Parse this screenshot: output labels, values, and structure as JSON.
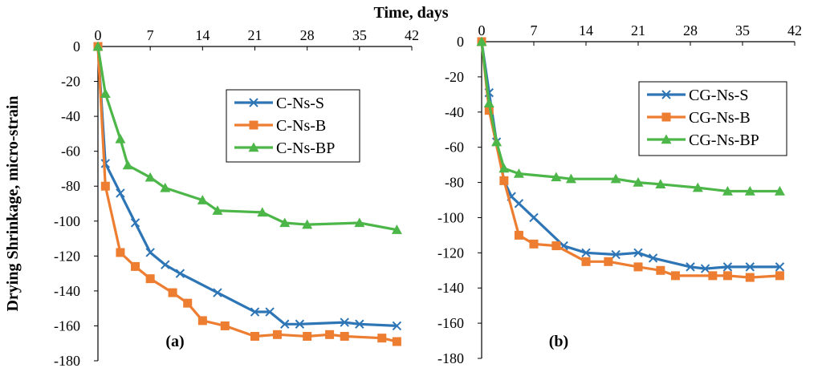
{
  "figure": {
    "xlabel": "Time, days",
    "ylabel": "Drying Shrinkage, micro-strain"
  },
  "chart_data": [
    {
      "type": "line",
      "panel_label": "(a)",
      "xlim": [
        0,
        42
      ],
      "ylim": [
        -180,
        0
      ],
      "x_ticks": [
        "0",
        "7",
        "14",
        "21",
        "28",
        "35",
        "42"
      ],
      "y_ticks": [
        "0",
        "-20",
        "-40",
        "-60",
        "-80",
        "-100",
        "-120",
        "-140",
        "-160",
        "-180"
      ],
      "grid": false,
      "legend_position": "top-right",
      "series": [
        {
          "name": "C-Ns-S",
          "color": "#2E75B6",
          "marker": "x",
          "x": [
            0,
            1,
            3,
            5,
            7,
            9,
            11,
            16,
            21,
            23,
            25,
            27,
            33,
            35,
            40
          ],
          "y": [
            0,
            -67,
            -84,
            -101,
            -118,
            -125,
            -130,
            -141,
            -152,
            -152,
            -159,
            -159,
            -158,
            -159,
            -160
          ]
        },
        {
          "name": "C-Ns-B",
          "color": "#ED7D31",
          "marker": "square",
          "x": [
            0,
            1,
            3,
            5,
            7,
            10,
            12,
            14,
            17,
            21,
            24,
            28,
            31,
            33,
            38,
            40
          ],
          "y": [
            0,
            -80,
            -118,
            -126,
            -133,
            -141,
            -147,
            -157,
            -160,
            -166,
            -165,
            -166,
            -165,
            -166,
            -167,
            -169
          ]
        },
        {
          "name": "C-Ns-BP",
          "color": "#4CB648",
          "marker": "triangle",
          "x": [
            0,
            1,
            3,
            4,
            7,
            9,
            14,
            16,
            22,
            25,
            28,
            35,
            40
          ],
          "y": [
            0,
            -27,
            -53,
            -68,
            -75,
            -81,
            -88,
            -94,
            -95,
            -101,
            -102,
            -101,
            -105
          ]
        }
      ]
    },
    {
      "type": "line",
      "panel_label": "(b)",
      "xlim": [
        0,
        42
      ],
      "ylim": [
        -180,
        0
      ],
      "x_ticks": [
        "0",
        "7",
        "14",
        "21",
        "28",
        "35",
        "42"
      ],
      "y_ticks": [
        "0",
        "-20",
        "-40",
        "-60",
        "-80",
        "-100",
        "-120",
        "-140",
        "-160",
        "-180"
      ],
      "grid": false,
      "legend_position": "top-right",
      "series": [
        {
          "name": "CG-Ns-S",
          "color": "#2E75B6",
          "marker": "x",
          "x": [
            0,
            1,
            2,
            3,
            4,
            5,
            7,
            11,
            14,
            18,
            21,
            23,
            28,
            30,
            33,
            36,
            40
          ],
          "y": [
            0,
            -29,
            -57,
            -79,
            -88,
            -92,
            -100,
            -116,
            -120,
            -121,
            -120,
            -123,
            -128,
            -129,
            -128,
            -128,
            -128
          ]
        },
        {
          "name": "CG-Ns-B",
          "color": "#ED7D31",
          "marker": "square",
          "x": [
            0,
            1,
            3,
            5,
            7,
            10,
            14,
            17,
            21,
            24,
            26,
            31,
            33,
            36,
            40
          ],
          "y": [
            0,
            -39,
            -79,
            -110,
            -115,
            -116,
            -125,
            -125,
            -128,
            -130,
            -133,
            -133,
            -133,
            -134,
            -133
          ]
        },
        {
          "name": "CG-Ns-BP",
          "color": "#4CB648",
          "marker": "triangle",
          "x": [
            0,
            1,
            2,
            3,
            5,
            10,
            12,
            18,
            21,
            24,
            29,
            33,
            36,
            40
          ],
          "y": [
            0,
            -35,
            -57,
            -72,
            -75,
            -77,
            -78,
            -78,
            -80,
            -81,
            -83,
            -85,
            -85,
            -85
          ]
        }
      ]
    }
  ]
}
